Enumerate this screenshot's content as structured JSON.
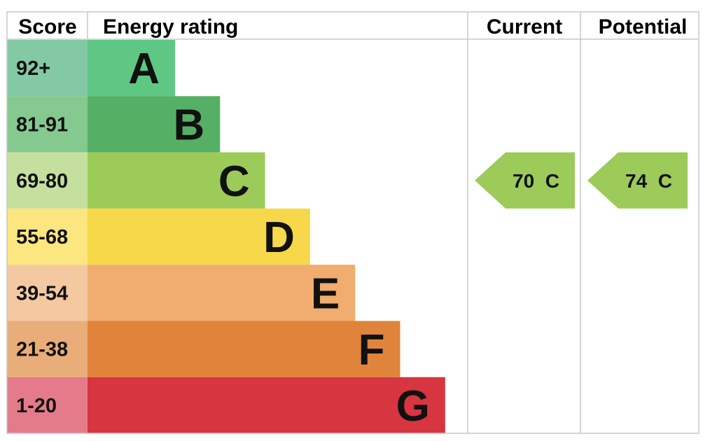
{
  "headers": {
    "score": "Score",
    "energy_rating": "Energy rating",
    "current": "Current",
    "potential": "Potential"
  },
  "chart_data": {
    "type": "bar",
    "bands": [
      {
        "score": "92+",
        "letter": "A",
        "color": "#5ec784",
        "score_bg": "#83c9a6"
      },
      {
        "score": "81-91",
        "letter": "B",
        "color": "#55b065",
        "score_bg": "#85c890"
      },
      {
        "score": "69-80",
        "letter": "C",
        "color": "#9ccb5a",
        "score_bg": "#c5e09e"
      },
      {
        "score": "55-68",
        "letter": "D",
        "color": "#f7d84b",
        "score_bg": "#fbe67f"
      },
      {
        "score": "39-54",
        "letter": "E",
        "color": "#f0ad6f",
        "score_bg": "#f4c9a2"
      },
      {
        "score": "21-38",
        "letter": "F",
        "color": "#e0843c",
        "score_bg": "#e9ad7a"
      },
      {
        "score": "1-20",
        "letter": "G",
        "color": "#d7353f",
        "score_bg": "#e57b8a"
      }
    ],
    "current": {
      "value": 70,
      "letter": "C",
      "label": "70  C",
      "color": "#9ccb5a"
    },
    "potential": {
      "value": 74,
      "letter": "C",
      "label": "74  C",
      "color": "#9ccb5a"
    }
  }
}
